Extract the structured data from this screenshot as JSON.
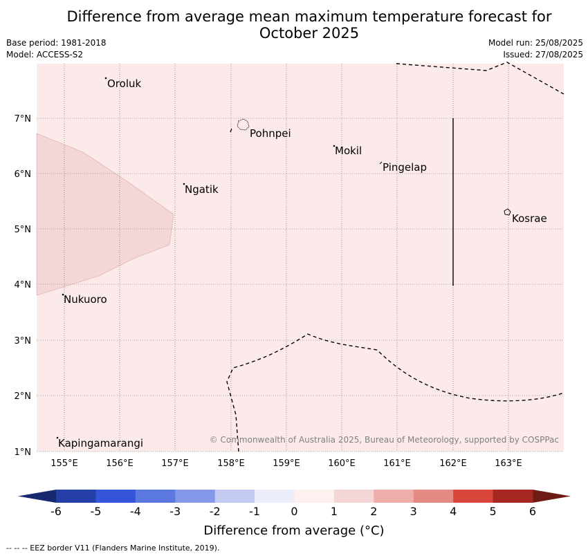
{
  "title_line1": "Difference from average mean maximum temperature forecast for",
  "title_line2": "October 2025",
  "meta_left": {
    "base_period": "Base period: 1981-2018",
    "model": "Model: ACCESS-S2"
  },
  "meta_right": {
    "model_run": "Model run: 25/08/2025",
    "issued": "Issued: 27/08/2025"
  },
  "map": {
    "lon_ticks": [
      "155°E",
      "156°E",
      "157°E",
      "158°E",
      "159°E",
      "160°E",
      "161°E",
      "162°E",
      "163°E"
    ],
    "lat_ticks": [
      "7°N",
      "6°N",
      "5°N",
      "4°N",
      "3°N",
      "2°N",
      "1°N"
    ],
    "places": [
      "Oroluk",
      "Pohnpei",
      "Mokil",
      "Pingelap",
      "Ngatik",
      "Kosrae",
      "Nukuoro",
      "Kapingamarangi"
    ],
    "copyright": "© Commonwealth of Australia 2025, Bureau of Meteorology, supported by COSPPac",
    "background_color": "#fbeae9",
    "anomaly_patch_color": "#f5d6d6"
  },
  "colorbar": {
    "tick_labels": [
      "-6",
      "-5",
      "-4",
      "-3",
      "-2",
      "-1",
      "0",
      "1",
      "2",
      "3",
      "4",
      "5",
      "6"
    ],
    "colors": [
      "#2440a8",
      "#3455d9",
      "#5a78e0",
      "#8497e8",
      "#c3cbf3",
      "#ecedfb",
      "#fdf0ee",
      "#f5d6d6",
      "#eeaeaa",
      "#e68a84",
      "#d9473c",
      "#a72822"
    ],
    "low_extend_color": "#16286e",
    "high_extend_color": "#6e1a15",
    "title": "Difference from average (°C)"
  },
  "footer": "--  --  -- EEZ border V11 (Flanders Marine Institute, 2019)."
}
